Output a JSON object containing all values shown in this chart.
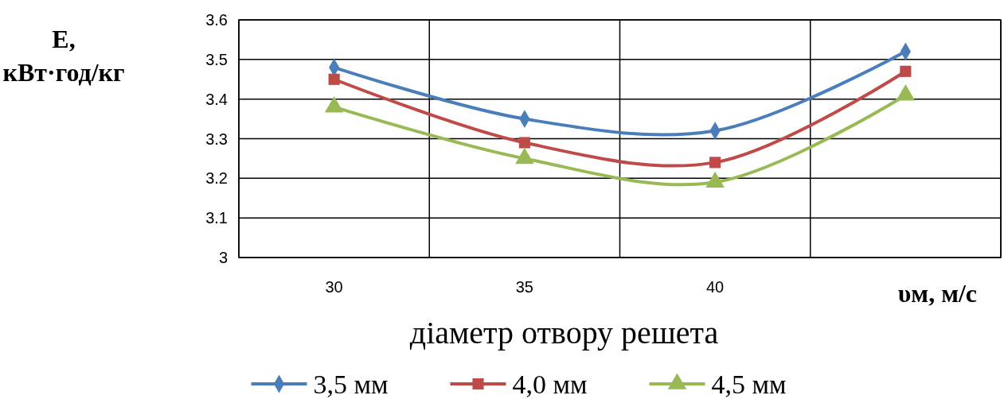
{
  "chart_data": {
    "type": "line",
    "ylabel": "E, кВт·год/кг",
    "xlabel": "діаметр отвору решета",
    "annotations": [
      "υм, м/с"
    ],
    "categories": [
      "30",
      "35",
      "40",
      null
    ],
    "series": [
      {
        "name": "3,5 мм",
        "color": "#4a7ebb",
        "marker": "diamond",
        "values": [
          3.48,
          3.35,
          3.32,
          3.52
        ]
      },
      {
        "name": "4,0 мм",
        "color": "#be4b48",
        "marker": "square",
        "values": [
          3.45,
          3.29,
          3.24,
          3.47
        ]
      },
      {
        "name": "4,5 мм",
        "color": "#98b954",
        "marker": "triangle",
        "values": [
          3.38,
          3.25,
          3.19,
          3.41
        ]
      }
    ],
    "ylim": [
      3,
      3.6
    ],
    "yticks": [
      3,
      3.1,
      3.2,
      3.3,
      3.4,
      3.5,
      3.6
    ],
    "grid": true,
    "legend": "bottom"
  }
}
